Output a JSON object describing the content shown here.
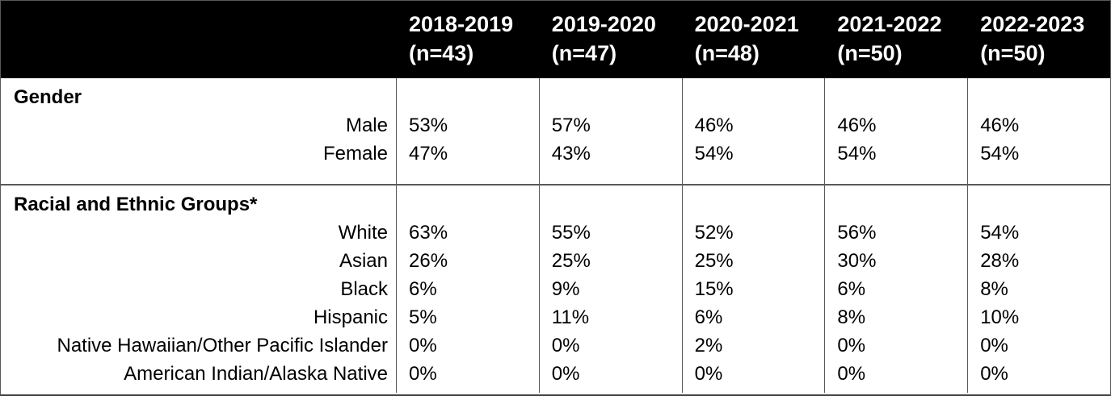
{
  "chart_data": {
    "type": "table",
    "column_headers": [
      {
        "year": "2018-2019",
        "n": "(n=43)"
      },
      {
        "year": "2019-2020",
        "n": "(n=47)"
      },
      {
        "year": "2020-2021",
        "n": "(n=48)"
      },
      {
        "year": "2021-2022",
        "n": "(n=50)"
      },
      {
        "year": "2022-2023",
        "n": "(n=50)"
      }
    ],
    "sections": [
      {
        "title": "Gender",
        "rows": [
          {
            "label": "Male",
            "values": [
              "53%",
              "57%",
              "46%",
              "46%",
              "46%"
            ]
          },
          {
            "label": "Female",
            "values": [
              "47%",
              "43%",
              "54%",
              "54%",
              "54%"
            ]
          }
        ]
      },
      {
        "title": "Racial and Ethnic Groups*",
        "rows": [
          {
            "label": "White",
            "values": [
              "63%",
              "55%",
              "52%",
              "56%",
              "54%"
            ]
          },
          {
            "label": "Asian",
            "values": [
              "26%",
              "25%",
              "25%",
              "30%",
              "28%"
            ]
          },
          {
            "label": "Black",
            "values": [
              "6%",
              "9%",
              "15%",
              "6%",
              "8%"
            ]
          },
          {
            "label": "Hispanic",
            "values": [
              "5%",
              "11%",
              "6%",
              "8%",
              "10%"
            ]
          },
          {
            "label": "Native Hawaiian/Other Pacific Islander",
            "values": [
              "0%",
              "0%",
              "2%",
              "0%",
              "0%"
            ]
          },
          {
            "label": "American Indian/Alaska Native",
            "values": [
              "0%",
              "0%",
              "0%",
              "0%",
              "0%"
            ]
          }
        ]
      }
    ],
    "colors": {
      "header_bg": "#000000",
      "header_text": "#ffffff",
      "body_text": "#000000",
      "grid_line": "#595959",
      "bottom_border": "#404040"
    }
  }
}
